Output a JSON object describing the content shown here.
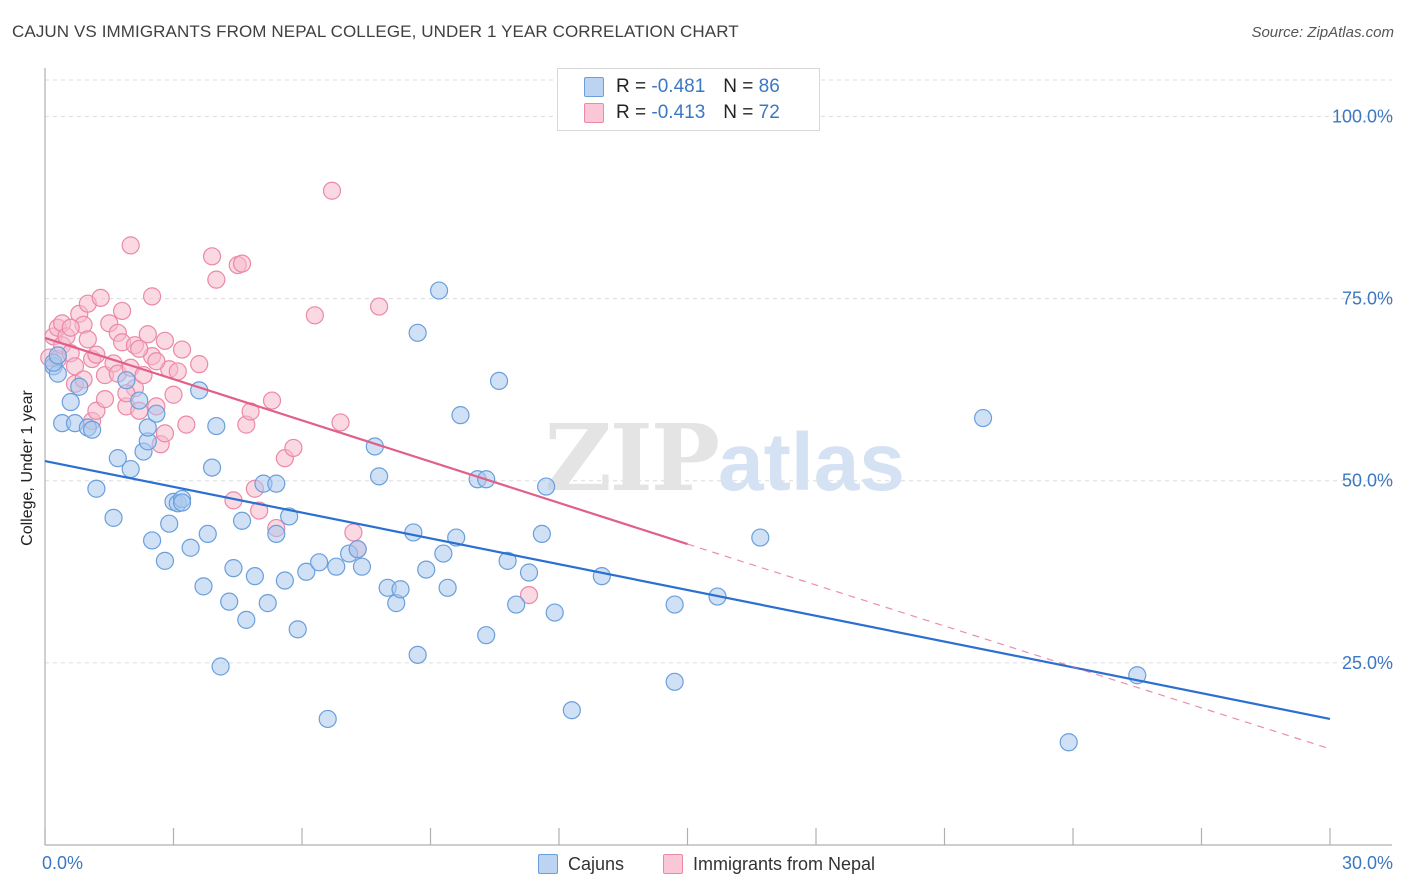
{
  "title": "CAJUN VS IMMIGRANTS FROM NEPAL COLLEGE, UNDER 1 YEAR CORRELATION CHART",
  "source": "Source: ZipAtlas.com",
  "watermark": {
    "zip": "ZIP",
    "atlas": "atlas"
  },
  "legend": {
    "rows": [
      {
        "r_label": "R =",
        "r_value": "-0.481",
        "n_label": "N =",
        "n_value": "86"
      },
      {
        "r_label": "R =",
        "r_value": "-0.413",
        "n_label": "N =",
        "n_value": "72"
      }
    ]
  },
  "bottom_legend": {
    "cajuns": "Cajuns",
    "nepal": "Immigrants from Nepal"
  },
  "colors": {
    "cajuns_fill": "#a9c8ee",
    "cajuns_stroke": "#6a9fdc",
    "cajuns_line": "#2b6fd1",
    "nepal_fill": "#f6b9cc",
    "nepal_stroke": "#ec88a8",
    "nepal_line": "#e0608a",
    "axis_text": "#3b78c4",
    "grid": "#dcdcdc"
  },
  "chart_data": {
    "type": "scatter",
    "xlabel": "",
    "ylabel": "College, Under 1 year",
    "xlim": [
      0,
      30
    ],
    "ylim": [
      0,
      105
    ],
    "x_tick_labels": [
      {
        "value": 0,
        "label": "0.0%"
      },
      {
        "value": 30,
        "label": "30.0%"
      }
    ],
    "y_tick_labels": [
      {
        "value": 25,
        "label": "25.0%"
      },
      {
        "value": 50,
        "label": "50.0%"
      },
      {
        "value": 75,
        "label": "75.0%"
      },
      {
        "value": 100,
        "label": "100.0%"
      }
    ],
    "grid": true,
    "series": [
      {
        "name": "Cajuns",
        "trend": {
          "x": [
            0,
            30
          ],
          "y": [
            52.7,
            17.3
          ]
        },
        "points": [
          [
            0.2,
            65.7
          ],
          [
            0.3,
            64.7
          ],
          [
            0.2,
            66.2
          ],
          [
            0.3,
            67.2
          ],
          [
            0.4,
            57.9
          ],
          [
            0.6,
            60.8
          ],
          [
            0.7,
            57.9
          ],
          [
            0.8,
            62.9
          ],
          [
            1.0,
            57.3
          ],
          [
            1.1,
            57.0
          ],
          [
            1.2,
            48.9
          ],
          [
            1.6,
            44.9
          ],
          [
            1.7,
            53.1
          ],
          [
            1.9,
            63.8
          ],
          [
            2.0,
            51.6
          ],
          [
            2.2,
            61.0
          ],
          [
            2.3,
            54.0
          ],
          [
            2.4,
            55.4
          ],
          [
            2.4,
            57.3
          ],
          [
            2.5,
            41.8
          ],
          [
            2.6,
            59.2
          ],
          [
            2.8,
            39.0
          ],
          [
            2.9,
            44.1
          ],
          [
            3.0,
            47.1
          ],
          [
            3.1,
            46.9
          ],
          [
            3.2,
            47.5
          ],
          [
            3.4,
            40.8
          ],
          [
            3.6,
            62.4
          ],
          [
            3.7,
            35.5
          ],
          [
            3.8,
            42.7
          ],
          [
            3.9,
            51.8
          ],
          [
            4.0,
            57.5
          ],
          [
            4.1,
            24.5
          ],
          [
            4.3,
            33.4
          ],
          [
            4.4,
            38.0
          ],
          [
            4.6,
            44.5
          ],
          [
            4.7,
            30.9
          ],
          [
            4.9,
            36.9
          ],
          [
            5.1,
            49.6
          ],
          [
            5.2,
            33.2
          ],
          [
            5.4,
            42.7
          ],
          [
            5.4,
            49.6
          ],
          [
            5.6,
            36.3
          ],
          [
            5.7,
            45.1
          ],
          [
            5.9,
            29.6
          ],
          [
            6.1,
            37.5
          ],
          [
            6.4,
            38.8
          ],
          [
            6.6,
            17.3
          ],
          [
            6.8,
            38.2
          ],
          [
            7.1,
            40.0
          ],
          [
            7.3,
            40.6
          ],
          [
            7.4,
            38.2
          ],
          [
            7.7,
            54.7
          ],
          [
            7.8,
            50.6
          ],
          [
            8.0,
            35.3
          ],
          [
            8.2,
            33.2
          ],
          [
            8.3,
            35.1
          ],
          [
            8.6,
            42.9
          ],
          [
            8.7,
            26.1
          ],
          [
            8.9,
            37.8
          ],
          [
            9.3,
            40.0
          ],
          [
            9.4,
            35.3
          ],
          [
            9.6,
            42.2
          ],
          [
            9.7,
            59.0
          ],
          [
            10.1,
            50.2
          ],
          [
            10.3,
            50.2
          ],
          [
            10.3,
            28.8
          ],
          [
            10.6,
            63.7
          ],
          [
            10.8,
            39.0
          ],
          [
            11.0,
            33.0
          ],
          [
            11.3,
            37.4
          ],
          [
            11.6,
            42.7
          ],
          [
            11.7,
            49.2
          ],
          [
            11.9,
            31.9
          ],
          [
            12.3,
            18.5
          ],
          [
            13.0,
            36.9
          ],
          [
            14.7,
            33.0
          ],
          [
            14.7,
            22.4
          ],
          [
            15.7,
            34.1
          ],
          [
            16.7,
            42.2
          ],
          [
            21.9,
            58.6
          ],
          [
            23.9,
            14.1
          ],
          [
            25.5,
            23.3
          ],
          [
            8.7,
            70.3
          ],
          [
            9.2,
            76.1
          ],
          [
            3.2,
            47.0
          ]
        ]
      },
      {
        "name": "Immigrants from Nepal",
        "trend": {
          "x": [
            0,
            15
          ],
          "y": [
            69.6,
            41.3
          ]
        },
        "trend_dashed": {
          "x": [
            15,
            30
          ],
          "y": [
            41.3,
            13.2
          ]
        },
        "points": [
          [
            0.1,
            66.9
          ],
          [
            0.2,
            69.8
          ],
          [
            0.3,
            71.0
          ],
          [
            0.3,
            66.7
          ],
          [
            0.4,
            71.6
          ],
          [
            0.4,
            68.6
          ],
          [
            0.5,
            69.8
          ],
          [
            0.6,
            67.5
          ],
          [
            0.7,
            65.7
          ],
          [
            0.7,
            63.3
          ],
          [
            0.8,
            72.9
          ],
          [
            0.9,
            71.4
          ],
          [
            1.0,
            74.3
          ],
          [
            1.1,
            58.2
          ],
          [
            1.1,
            66.7
          ],
          [
            1.2,
            59.6
          ],
          [
            1.2,
            67.3
          ],
          [
            1.3,
            75.1
          ],
          [
            1.4,
            64.5
          ],
          [
            1.5,
            71.6
          ],
          [
            1.6,
            66.1
          ],
          [
            1.7,
            64.7
          ],
          [
            1.7,
            70.3
          ],
          [
            1.8,
            73.3
          ],
          [
            1.8,
            69.0
          ],
          [
            1.9,
            60.2
          ],
          [
            2.0,
            65.5
          ],
          [
            2.1,
            68.6
          ],
          [
            2.1,
            62.7
          ],
          [
            2.2,
            59.6
          ],
          [
            2.3,
            64.5
          ],
          [
            2.4,
            70.1
          ],
          [
            2.5,
            75.3
          ],
          [
            2.5,
            67.1
          ],
          [
            2.6,
            60.2
          ],
          [
            2.7,
            55.0
          ],
          [
            2.8,
            56.5
          ],
          [
            2.9,
            65.3
          ],
          [
            2.0,
            82.3
          ],
          [
            3.2,
            68.0
          ],
          [
            3.3,
            57.7
          ],
          [
            3.9,
            80.8
          ],
          [
            4.0,
            77.6
          ],
          [
            4.5,
            79.6
          ],
          [
            4.6,
            79.8
          ],
          [
            4.4,
            47.3
          ],
          [
            4.7,
            57.7
          ],
          [
            4.9,
            48.9
          ],
          [
            5.0,
            45.9
          ],
          [
            5.3,
            61.0
          ],
          [
            5.4,
            43.5
          ],
          [
            5.6,
            53.1
          ],
          [
            5.8,
            54.5
          ],
          [
            6.3,
            72.7
          ],
          [
            6.7,
            89.8
          ],
          [
            6.9,
            58.0
          ],
          [
            7.2,
            42.9
          ],
          [
            7.3,
            40.6
          ],
          [
            7.8,
            73.9
          ],
          [
            11.3,
            34.3
          ],
          [
            3.1,
            65.0
          ],
          [
            3.6,
            66.0
          ],
          [
            2.2,
            68.1
          ],
          [
            1.9,
            62.0
          ],
          [
            0.9,
            63.9
          ],
          [
            1.4,
            61.2
          ],
          [
            2.6,
            66.4
          ],
          [
            3.0,
            61.8
          ],
          [
            0.6,
            71.0
          ],
          [
            1.0,
            69.4
          ],
          [
            2.8,
            69.2
          ],
          [
            4.8,
            59.5
          ]
        ]
      }
    ]
  }
}
